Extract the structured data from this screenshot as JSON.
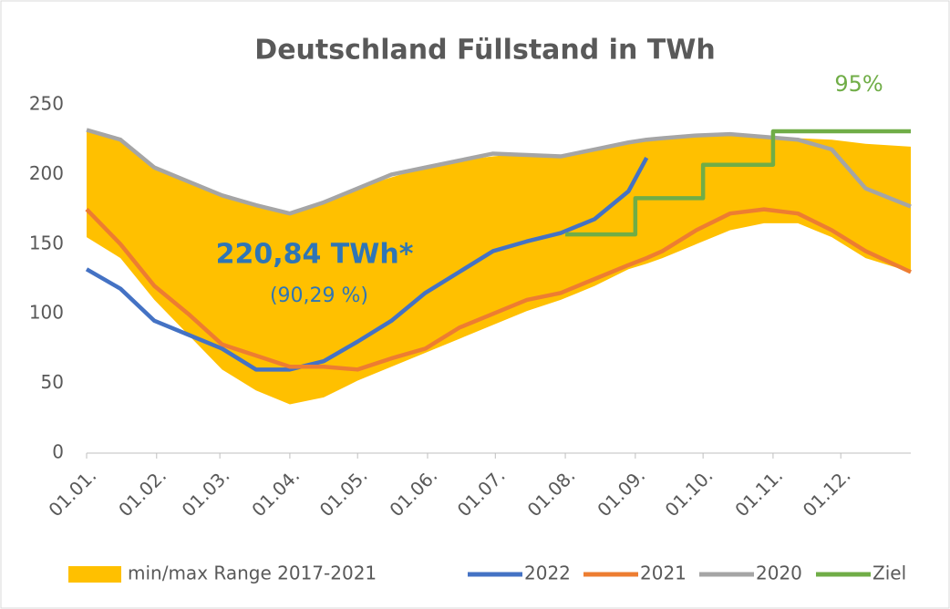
{
  "chart_data": {
    "type": "line",
    "title": "Deutschland Füllstand in TWh",
    "x": [
      0,
      15,
      30,
      45,
      60,
      75,
      90,
      105,
      120,
      135,
      150,
      165,
      180,
      195,
      210,
      225,
      240,
      248,
      255,
      270,
      285,
      300,
      315,
      330,
      345,
      365
    ],
    "band": {
      "name": "min/max Range 2017-2021",
      "color": "#FFC000",
      "upper": [
        232,
        225,
        205,
        195,
        185,
        178,
        172,
        180,
        190,
        198,
        205,
        210,
        213,
        215,
        214,
        218,
        222,
        224,
        225,
        227,
        228,
        227,
        226,
        225,
        222,
        220
      ],
      "lower": [
        155,
        140,
        110,
        85,
        60,
        45,
        35,
        40,
        52,
        62,
        72,
        82,
        92,
        102,
        110,
        120,
        132,
        136,
        140,
        150,
        160,
        165,
        165,
        155,
        140,
        130
      ]
    },
    "series": [
      {
        "name": "2022",
        "color": "#4472C4",
        "values": [
          132,
          118,
          95,
          85,
          75,
          60,
          60,
          66,
          80,
          95,
          115,
          130,
          145,
          152,
          158,
          168,
          188,
          212,
          null,
          null,
          null,
          null,
          null,
          null,
          null,
          null
        ]
      },
      {
        "name": "2021",
        "color": "#ED7D31",
        "values": [
          175,
          150,
          120,
          100,
          78,
          70,
          62,
          62,
          60,
          68,
          75,
          90,
          100,
          110,
          115,
          125,
          135,
          140,
          145,
          160,
          172,
          175,
          172,
          160,
          145,
          130
        ]
      },
      {
        "name": "2020",
        "color": "#A5A5A5",
        "values": [
          232,
          225,
          205,
          195,
          185,
          178,
          172,
          180,
          190,
          200,
          205,
          210,
          215,
          214,
          213,
          218,
          223,
          225,
          226,
          228,
          229,
          227,
          225,
          218,
          190,
          177
        ]
      },
      {
        "name": "Ziel",
        "color": "#70AD47",
        "x": [
          212,
          243,
          243,
          273,
          273,
          304,
          304,
          365
        ],
        "values": [
          157,
          157,
          183,
          183,
          207,
          207,
          231,
          231
        ]
      }
    ],
    "annotations": [
      "220,84 TWh*",
      "(90,29 %)",
      "95%"
    ],
    "xlim": [
      0,
      365
    ],
    "xticks": [
      {
        "value": 0,
        "label": "01.01."
      },
      {
        "value": 31,
        "label": "01.02."
      },
      {
        "value": 59,
        "label": "01.03."
      },
      {
        "value": 90,
        "label": "01.04."
      },
      {
        "value": 120,
        "label": "01.05."
      },
      {
        "value": 151,
        "label": "01.06."
      },
      {
        "value": 181,
        "label": "01.07."
      },
      {
        "value": 212,
        "label": "01.08."
      },
      {
        "value": 243,
        "label": "01.09."
      },
      {
        "value": 273,
        "label": "01.10."
      },
      {
        "value": 304,
        "label": "01.11."
      },
      {
        "value": 334,
        "label": "01.12."
      }
    ],
    "ylim": [
      0,
      250
    ],
    "yticks": [
      0,
      50,
      100,
      150,
      200,
      250
    ],
    "grid": false,
    "legend": "bottom"
  }
}
